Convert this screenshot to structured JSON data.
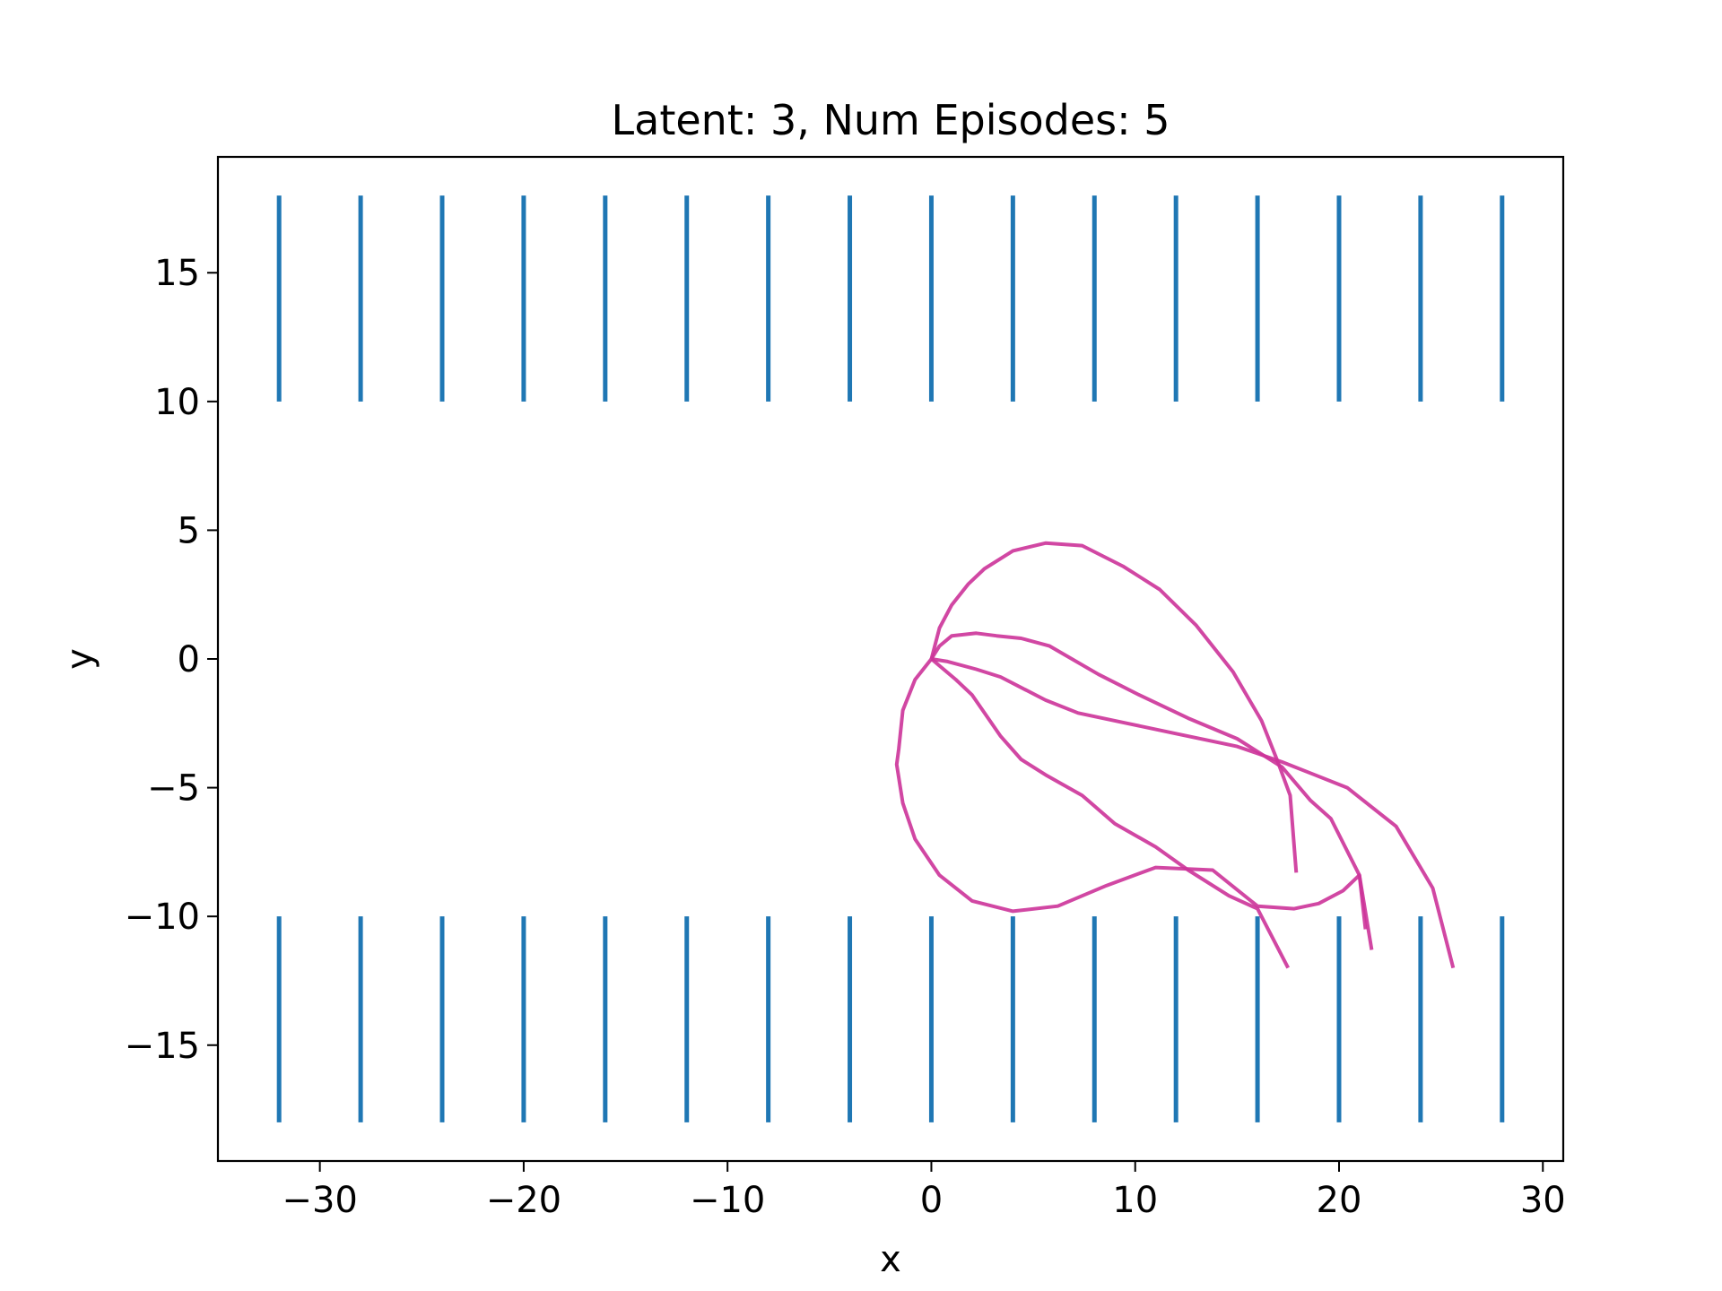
{
  "chart_data": {
    "type": "line",
    "title": "Latent: 3, Num Episodes: 5",
    "xlabel": "x",
    "ylabel": "y",
    "xlim": [
      -35,
      31
    ],
    "ylim": [
      -19.5,
      19.5
    ],
    "xticks": [
      {
        "value": -30,
        "label": "−30"
      },
      {
        "value": -20,
        "label": "−20"
      },
      {
        "value": -10,
        "label": "−10"
      },
      {
        "value": 0,
        "label": "0"
      },
      {
        "value": 10,
        "label": "10"
      },
      {
        "value": 20,
        "label": "20"
      },
      {
        "value": 30,
        "label": "30"
      }
    ],
    "yticks": [
      {
        "value": -15,
        "label": "−15"
      },
      {
        "value": -10,
        "label": "−10"
      },
      {
        "value": -5,
        "label": "−5"
      },
      {
        "value": 0,
        "label": "0"
      },
      {
        "value": 5,
        "label": "5"
      },
      {
        "value": 10,
        "label": "10"
      },
      {
        "value": 15,
        "label": "15"
      }
    ],
    "grid": false,
    "legend": null,
    "colors": {
      "walls": "#1f77b4",
      "trajectories": "#cc3399"
    },
    "wall_segments": {
      "x": [
        -32,
        -28,
        -24,
        -20,
        -16,
        -12,
        -8,
        -4,
        0,
        4,
        8,
        12,
        16,
        20,
        24,
        28
      ],
      "top": [
        10,
        18
      ],
      "bottom": [
        -18,
        -10
      ]
    },
    "series": [
      {
        "points": [
          [
            0,
            0
          ],
          [
            -0.8,
            -0.8
          ],
          [
            -1.4,
            -2.0
          ],
          [
            -1.6,
            -3.5
          ],
          [
            -1.7,
            -4.1
          ],
          [
            -1.4,
            -5.6
          ],
          [
            -0.8,
            -7.0
          ],
          [
            0.4,
            -8.4
          ],
          [
            2.0,
            -9.4
          ],
          [
            4.0,
            -9.8
          ],
          [
            6.2,
            -9.6
          ],
          [
            8.6,
            -8.8
          ],
          [
            11.0,
            -8.1
          ],
          [
            13.8,
            -8.2
          ],
          [
            16.0,
            -9.6
          ],
          [
            17.8,
            -9.7
          ],
          [
            19.0,
            -9.5
          ],
          [
            20.2,
            -9.0
          ],
          [
            21.0,
            -8.4
          ],
          [
            21.3,
            -10.5
          ]
        ]
      },
      {
        "points": [
          [
            0,
            0
          ],
          [
            1.2,
            -0.8
          ],
          [
            2.0,
            -1.4
          ],
          [
            3.4,
            -3.0
          ],
          [
            4.4,
            -3.9
          ],
          [
            5.6,
            -4.5
          ],
          [
            7.4,
            -5.3
          ],
          [
            9.0,
            -6.4
          ],
          [
            11.0,
            -7.3
          ],
          [
            12.6,
            -8.2
          ],
          [
            14.6,
            -9.2
          ],
          [
            16.0,
            -9.7
          ],
          [
            17.5,
            -12.0
          ]
        ]
      },
      {
        "points": [
          [
            0,
            0
          ],
          [
            0.8,
            -0.1
          ],
          [
            2.2,
            -0.4
          ],
          [
            3.4,
            -0.7
          ],
          [
            5.6,
            -1.6
          ],
          [
            7.2,
            -2.1
          ],
          [
            9.6,
            -2.5
          ],
          [
            12.0,
            -2.9
          ],
          [
            15.0,
            -3.4
          ],
          [
            17.2,
            -4.0
          ],
          [
            18.8,
            -4.5
          ],
          [
            20.4,
            -5.0
          ],
          [
            22.8,
            -6.5
          ],
          [
            24.6,
            -8.9
          ],
          [
            25.6,
            -12.0
          ]
        ]
      },
      {
        "points": [
          [
            0,
            0
          ],
          [
            0.4,
            0.5
          ],
          [
            1.0,
            0.9
          ],
          [
            2.2,
            1.0
          ],
          [
            3.2,
            0.9
          ],
          [
            4.4,
            0.8
          ],
          [
            5.8,
            0.5
          ],
          [
            8.2,
            -0.6
          ],
          [
            10.2,
            -1.4
          ],
          [
            12.6,
            -2.3
          ],
          [
            15.0,
            -3.1
          ],
          [
            17.2,
            -4.2
          ],
          [
            18.6,
            -5.5
          ],
          [
            19.6,
            -6.2
          ],
          [
            21.0,
            -8.4
          ],
          [
            21.6,
            -11.3
          ]
        ]
      },
      {
        "points": [
          [
            0,
            0
          ],
          [
            0.4,
            1.2
          ],
          [
            1.0,
            2.1
          ],
          [
            1.8,
            2.9
          ],
          [
            2.6,
            3.5
          ],
          [
            4.0,
            4.2
          ],
          [
            5.6,
            4.5
          ],
          [
            7.4,
            4.4
          ],
          [
            9.4,
            3.6
          ],
          [
            11.2,
            2.7
          ],
          [
            13.0,
            1.3
          ],
          [
            14.8,
            -0.5
          ],
          [
            16.2,
            -2.4
          ],
          [
            17.0,
            -4.0
          ],
          [
            17.6,
            -5.3
          ],
          [
            17.9,
            -8.3
          ]
        ]
      }
    ]
  }
}
